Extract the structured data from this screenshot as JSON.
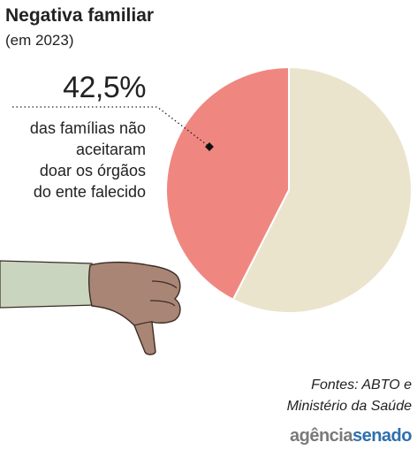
{
  "header": {
    "title": "Negativa familiar",
    "subtitle": "(em 2023)"
  },
  "annotation": {
    "percent_label": "42,5%",
    "lines": [
      "das famílias não",
      "aceitaram",
      "doar os órgãos",
      "do ente falecido"
    ]
  },
  "footer": {
    "sources_lines": [
      "Fontes: ABTO e",
      "Ministério da Saúde"
    ],
    "logo_part1": "agência",
    "logo_part2": "senado"
  },
  "colors": {
    "refused": "#ef8780",
    "rest": "#ebe4cc",
    "sleeve": "#c9d5bf",
    "hand": "#a98576",
    "outline": "#3d2d26",
    "logo_gray": "#7a7a7a",
    "logo_blue": "#2e6fad"
  },
  "chart_data": {
    "type": "pie",
    "values": [
      42.5,
      57.5
    ],
    "labels": [
      "42,5%",
      ""
    ],
    "title": "Negativa familiar",
    "subtitle": "(em 2023)"
  }
}
